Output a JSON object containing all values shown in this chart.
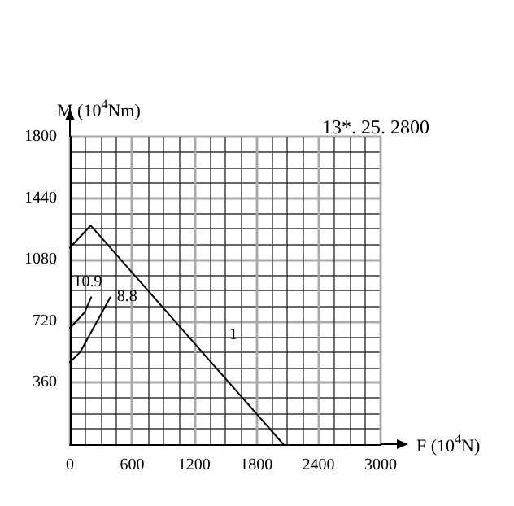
{
  "chart_data": {
    "type": "line",
    "xlabel": "F (10$^{4}$N)",
    "ylabel": "M (10$^{4}$Nm)",
    "annotations": [
      "13*. 25. 2800"
    ],
    "series": [
      {
        "name": "1",
        "color": "#000000",
        "x": [
          0,
          200,
          2060
        ],
        "values": [
          1150,
          1280,
          0
        ]
      },
      {
        "name": "10.9",
        "color": "#000000",
        "x": [
          0,
          140,
          205
        ],
        "values": [
          680,
          770,
          860
        ]
      },
      {
        "name": "8.8",
        "color": "#000000",
        "x": [
          0,
          100,
          390
        ],
        "values": [
          480,
          540,
          860
        ]
      }
    ],
    "xlim": [
      0,
      3000
    ],
    "xticks": [
      0,
      600,
      1200,
      1800,
      2400,
      3000
    ],
    "ylim": [
      0,
      1800
    ],
    "yticks": [
      360,
      720,
      1080,
      1440,
      1800
    ],
    "grid": true,
    "marker": "none",
    "line_style": "solid"
  }
}
